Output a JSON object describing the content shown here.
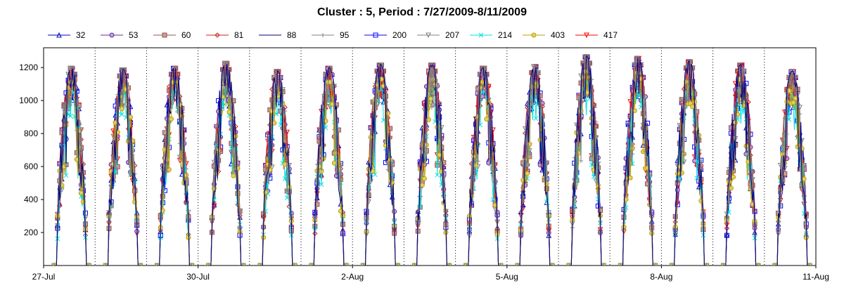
{
  "chart_data": {
    "type": "line",
    "title": "Cluster : 5, Period : 7/27/2009-8/11/2009",
    "xlabel": "",
    "ylabel": "",
    "x_range_days": [
      0,
      15
    ],
    "x_tick_labels": [
      {
        "day": 0,
        "label": "27-Jul"
      },
      {
        "day": 3,
        "label": "30-Jul"
      },
      {
        "day": 6,
        "label": "2-Aug"
      },
      {
        "day": 9,
        "label": "5-Aug"
      },
      {
        "day": 12,
        "label": "8-Aug"
      },
      {
        "day": 15,
        "label": "11-Aug"
      }
    ],
    "ylim": [
      0,
      1320
    ],
    "y_ticks": [
      200,
      400,
      600,
      800,
      1000,
      1200
    ],
    "grid": "vertical dotted at day boundaries",
    "legend_position": "top",
    "daily_peaks": [
      1200,
      1190,
      1200,
      1230,
      1180,
      1200,
      1220,
      1220,
      1200,
      1210,
      1270,
      1260,
      1240,
      1220,
      1180
    ],
    "daylight_hours": [
      6,
      20
    ],
    "series": [
      {
        "name": "32",
        "color": "#0000cc",
        "marker": "triangle-up"
      },
      {
        "name": "53",
        "color": "#6a2aa0",
        "marker": "circle"
      },
      {
        "name": "60",
        "color": "#a05050",
        "marker": "square"
      },
      {
        "name": "81",
        "color": "#cc2020",
        "marker": "diamond"
      },
      {
        "name": "88",
        "color": "#000080",
        "marker": "none"
      },
      {
        "name": "95",
        "color": "#808080",
        "marker": "plus"
      },
      {
        "name": "200",
        "color": "#0000ff",
        "marker": "square-open"
      },
      {
        "name": "207",
        "color": "#808080",
        "marker": "triangle-down"
      },
      {
        "name": "214",
        "color": "#00e0e0",
        "marker": "x"
      },
      {
        "name": "403",
        "color": "#c0a000",
        "marker": "circle-filled"
      },
      {
        "name": "417",
        "color": "#ff0000",
        "marker": "triangle-down"
      }
    ]
  }
}
